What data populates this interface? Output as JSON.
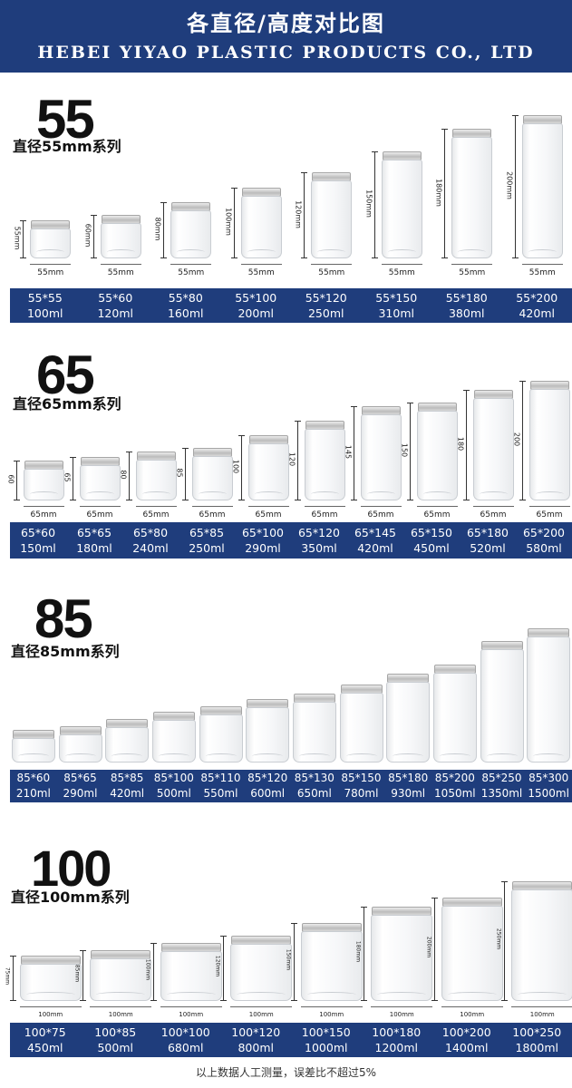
{
  "header": {
    "title_cn": "各直径/高度对比图",
    "title_en": "HEBEI YIYAO PLASTIC PRODUCTS CO., LTD"
  },
  "sections": [
    {
      "id": "s55",
      "number": "55",
      "label": "直径55mm系列",
      "jars": [
        {
          "size": "55*55",
          "volume": "100ml",
          "width_label": "55mm",
          "height_label": "55mm"
        },
        {
          "size": "55*60",
          "volume": "120ml",
          "width_label": "55mm",
          "height_label": "60mm"
        },
        {
          "size": "55*80",
          "volume": "160ml",
          "width_label": "55mm",
          "height_label": "80mm"
        },
        {
          "size": "55*100",
          "volume": "200ml",
          "width_label": "55mm",
          "height_label": "100mm"
        },
        {
          "size": "55*120",
          "volume": "250ml",
          "width_label": "55mm",
          "height_label": "120mm"
        },
        {
          "size": "55*150",
          "volume": "310ml",
          "width_label": "55mm",
          "height_label": "150mm"
        },
        {
          "size": "55*180",
          "volume": "380ml",
          "width_label": "55mm",
          "height_label": "180mm"
        },
        {
          "size": "55*200",
          "volume": "420ml",
          "width_label": "55mm",
          "height_label": "200mm"
        }
      ]
    },
    {
      "id": "s65",
      "number": "65",
      "label": "直径65mm系列",
      "jars": [
        {
          "size": "65*60",
          "volume": "150ml",
          "width_label": "65mm",
          "height_label": "60"
        },
        {
          "size": "65*65",
          "volume": "180ml",
          "width_label": "65mm",
          "height_label": "65"
        },
        {
          "size": "65*80",
          "volume": "240ml",
          "width_label": "65mm",
          "height_label": "80"
        },
        {
          "size": "65*85",
          "volume": "250ml",
          "width_label": "65mm",
          "height_label": "85"
        },
        {
          "size": "65*100",
          "volume": "290ml",
          "width_label": "65mm",
          "height_label": "100"
        },
        {
          "size": "65*120",
          "volume": "350ml",
          "width_label": "65mm",
          "height_label": "120"
        },
        {
          "size": "65*145",
          "volume": "420ml",
          "width_label": "65mm",
          "height_label": "145"
        },
        {
          "size": "65*150",
          "volume": "450ml",
          "width_label": "65mm",
          "height_label": "150"
        },
        {
          "size": "65*180",
          "volume": "520ml",
          "width_label": "65mm",
          "height_label": "180"
        },
        {
          "size": "65*200",
          "volume": "580ml",
          "width_label": "65mm",
          "height_label": "200"
        }
      ]
    },
    {
      "id": "s85",
      "number": "85",
      "label": "直径85mm系列",
      "jars": [
        {
          "size": "85*60",
          "volume": "210ml"
        },
        {
          "size": "85*65",
          "volume": "290ml"
        },
        {
          "size": "85*85",
          "volume": "420ml"
        },
        {
          "size": "85*100",
          "volume": "500ml"
        },
        {
          "size": "85*110",
          "volume": "550ml"
        },
        {
          "size": "85*120",
          "volume": "600ml"
        },
        {
          "size": "85*130",
          "volume": "650ml"
        },
        {
          "size": "85*150",
          "volume": "780ml"
        },
        {
          "size": "85*180",
          "volume": "930ml"
        },
        {
          "size": "85*200",
          "volume": "1050ml"
        },
        {
          "size": "85*250",
          "volume": "1350ml"
        },
        {
          "size": "85*300",
          "volume": "1500ml"
        }
      ]
    },
    {
      "id": "s100",
      "number": "100",
      "label": "直径100mm系列",
      "jars": [
        {
          "size": "100*75",
          "volume": "450ml",
          "width_label": "100mm",
          "height_label": "75mm"
        },
        {
          "size": "100*85",
          "volume": "500ml",
          "width_label": "100mm",
          "height_label": "85mm"
        },
        {
          "size": "100*100",
          "volume": "680ml",
          "width_label": "100mm",
          "height_label": "100mm"
        },
        {
          "size": "100*120",
          "volume": "800ml",
          "width_label": "100mm",
          "height_label": "120mm"
        },
        {
          "size": "100*150",
          "volume": "1000ml",
          "width_label": "100mm",
          "height_label": "150mm"
        },
        {
          "size": "100*180",
          "volume": "1200ml",
          "width_label": "100mm",
          "height_label": "180mm"
        },
        {
          "size": "100*200",
          "volume": "1400ml",
          "width_label": "100mm",
          "height_label": "200mm"
        },
        {
          "size": "100*250",
          "volume": "1800ml",
          "width_label": "100mm",
          "height_label": "250mm"
        }
      ]
    }
  ],
  "footnote": "以上数据人工测量，误差比不超过5%"
}
